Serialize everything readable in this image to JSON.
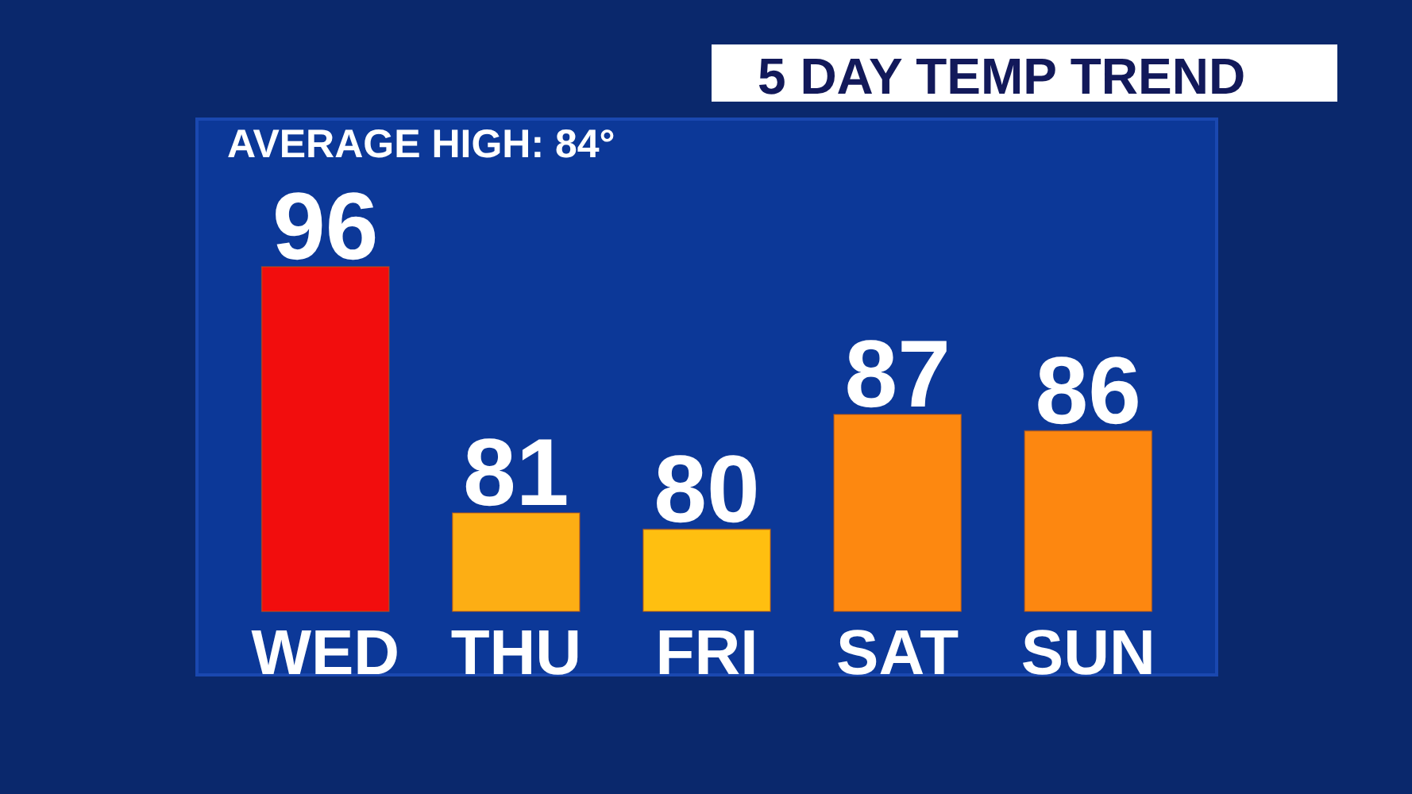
{
  "chart_data": {
    "type": "bar",
    "title": "5 DAY TEMP TREND",
    "annotations": [
      "AVERAGE HIGH: 84°"
    ],
    "categories": [
      "WED",
      "THU",
      "FRI",
      "SAT",
      "SUN"
    ],
    "values": [
      96,
      81,
      80,
      87,
      86
    ],
    "colors": [
      "#f20d0d",
      "#fdae14",
      "#ffbf10",
      "#fd8810",
      "#fd8710"
    ],
    "ylim": [
      75,
      105
    ],
    "data_labels": true,
    "tick_labels": "x"
  }
}
